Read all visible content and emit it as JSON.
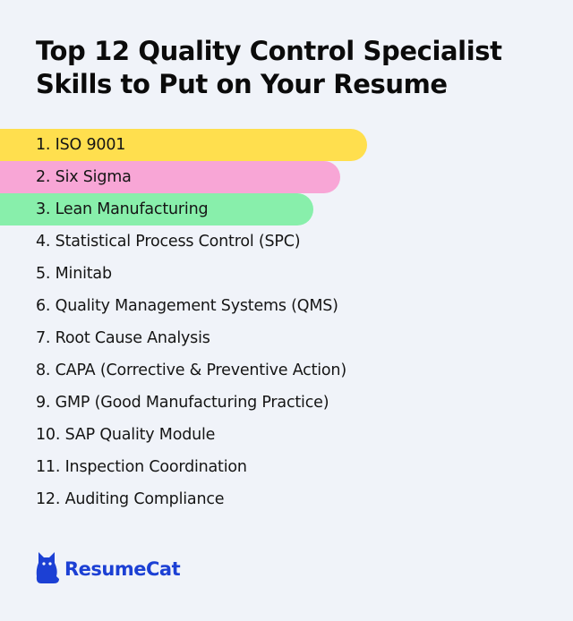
{
  "title_line1": "Top 12 Quality Control Specialist",
  "title_line2": "Skills to Put on Your Resume",
  "skills": [
    "1. ISO 9001",
    "2. Six Sigma",
    "3. Lean Manufacturing",
    "4. Statistical Process Control (SPC)",
    "5. Minitab",
    "6. Quality Management Systems (QMS)",
    "7. Root Cause Analysis",
    "8. CAPA (Corrective & Preventive Action)",
    "9. GMP (Good Manufacturing Practice)",
    "10. SAP Quality Module",
    "11. Inspection Coordination",
    "12. Auditing Compliance"
  ],
  "highlight_colors": [
    "#ffdf4e",
    "#f8a6d6",
    "#88efab"
  ],
  "brand": {
    "name": "ResumeCat",
    "icon": "cat-icon",
    "color": "#1c40d4"
  }
}
